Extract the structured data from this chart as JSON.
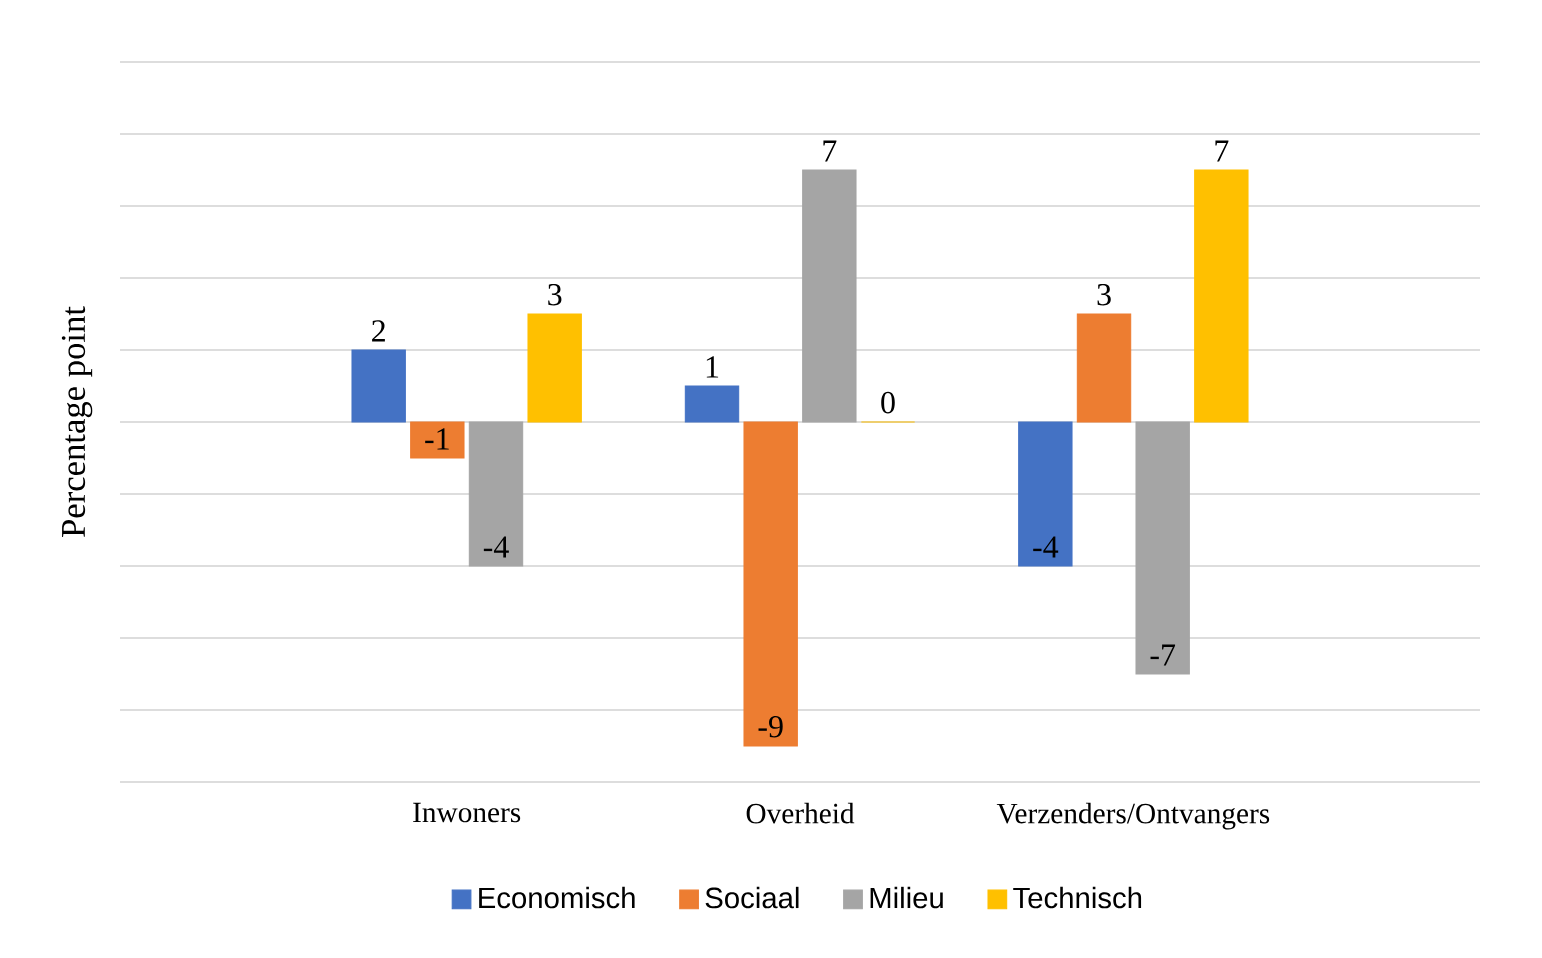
{
  "chart_data": {
    "type": "bar",
    "ylabel": "Percentage point",
    "categories": [
      "Inwoners",
      "Overheid",
      "Verzenders/Ontvangers"
    ],
    "series": [
      {
        "name": "Economisch",
        "color": "#4472c4",
        "values": [
          2,
          1,
          -4
        ]
      },
      {
        "name": "Sociaal",
        "color": "#ed7d31",
        "values": [
          -1,
          -9,
          3
        ]
      },
      {
        "name": "Milieu",
        "color": "#a5a5a5",
        "values": [
          -4,
          7,
          -7
        ]
      },
      {
        "name": "Technisch",
        "color": "#ffc000",
        "values": [
          3,
          0,
          7
        ]
      }
    ],
    "ylim": [
      -10,
      10
    ],
    "yticks": [
      {
        "value": -10,
        "label": null
      },
      {
        "value": -8,
        "label": null
      },
      {
        "value": -6,
        "label": null
      },
      {
        "value": -4,
        "label": null
      },
      {
        "value": -2,
        "label": null
      },
      {
        "value": 0,
        "label": null
      },
      {
        "value": 2,
        "label": null
      },
      {
        "value": 4,
        "label": null
      },
      {
        "value": 6,
        "label": null
      },
      {
        "value": 8,
        "label": null
      },
      {
        "value": 10,
        "label": null
      }
    ],
    "tick_labels": "x",
    "grid": "y",
    "legend": "bottom",
    "data_labels": true
  }
}
